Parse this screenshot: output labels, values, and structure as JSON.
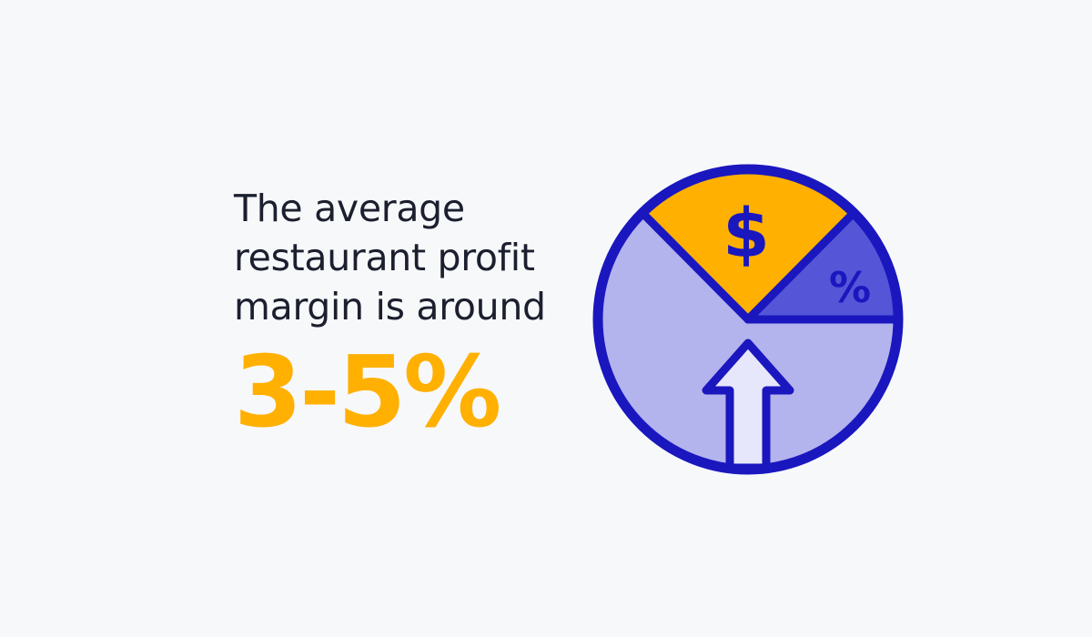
{
  "headline": {
    "lines": [
      "The average",
      "restaurant profit",
      "margin is around"
    ],
    "stat": "3-5%"
  },
  "graphic": {
    "dollar_symbol": "$",
    "percent_symbol": "%",
    "icons": [
      "pie-chart-icon",
      "dollar-icon",
      "percent-icon",
      "up-arrow-icon"
    ]
  },
  "colors": {
    "background": "#f7f8fa",
    "text": "#1b1f2e",
    "accent": "#ffb000",
    "outline": "#1a17bf",
    "slice_light": "#b3b3ee",
    "slice_dark": "#5555d8",
    "arrow_fill": "#e6e7fb"
  }
}
